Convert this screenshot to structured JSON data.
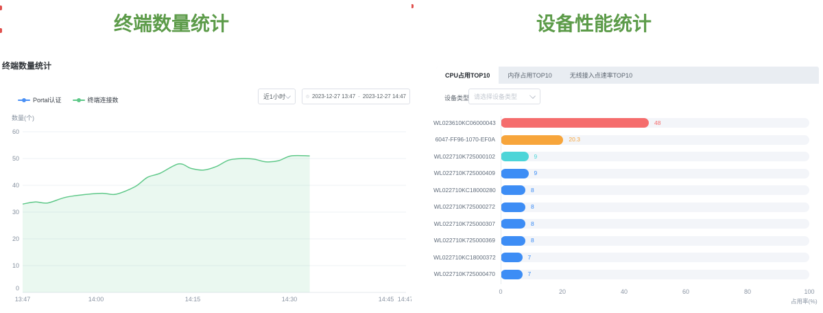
{
  "titles": {
    "left": "终端数量统计",
    "right": "设备性能统计",
    "title_color": "#5c9b49"
  },
  "left_panel": {
    "header": "终端数量统计",
    "time_select_value": "近1小时",
    "date_start": "2023-12-27 13:47",
    "date_separator": "-",
    "date_end": "2023-12-27 14:47",
    "legend": [
      {
        "label": "Portal认证",
        "color": "#4a90f5"
      },
      {
        "label": "终端连接数",
        "color": "#5ec888"
      }
    ]
  },
  "right_panel": {
    "tabs": [
      {
        "label": "CPU占用TOP10",
        "active": true
      },
      {
        "label": "内存占用TOP10",
        "active": false
      },
      {
        "label": "无线接入点速率TOP10",
        "active": false
      }
    ],
    "device_type_label": "设备类型",
    "device_type_placeholder": "请选择设备类型"
  },
  "chart_data": [
    {
      "type": "area",
      "title": "终端数量统计",
      "ylabel": "数量(个)",
      "ylim": [
        0,
        60
      ],
      "y_ticks": [
        0,
        10,
        20,
        30,
        40,
        50,
        60
      ],
      "x_ticks": [
        "13:47",
        "14:00",
        "14:15",
        "14:30",
        "14:45",
        "14:47"
      ],
      "x_axis_span": "13:47 - 14:47",
      "grid": true,
      "legend_position": "top-left",
      "series": [
        {
          "name": "Portal认证",
          "color": "#4a90f5",
          "values": []
        },
        {
          "name": "终端连接数",
          "color": "#5ec888",
          "fill_opacity": 0.13,
          "x": [
            "13:47",
            "13:49",
            "13:51",
            "13:54",
            "13:58",
            "14:00",
            "14:02",
            "14:05",
            "14:07",
            "14:09",
            "14:12",
            "14:14",
            "14:16",
            "14:18",
            "14:20",
            "14:22",
            "14:24",
            "14:26",
            "14:28",
            "14:30",
            "14:33"
          ],
          "minutes": [
            0,
            2,
            4,
            7,
            11,
            13,
            15,
            18,
            20,
            22,
            25,
            27,
            29,
            31,
            33,
            35,
            37,
            39,
            41,
            43,
            46
          ],
          "values": [
            33,
            33.8,
            33.4,
            35.6,
            36.8,
            37,
            36.7,
            39.5,
            43,
            44.5,
            48,
            46.3,
            45.7,
            47,
            49.4,
            50,
            49.8,
            48.8,
            49.2,
            51,
            51
          ]
        }
      ]
    },
    {
      "type": "bar",
      "orientation": "horizontal",
      "title": "CPU占用TOP10",
      "categories": [
        "WL023610KC06000043",
        "6047-FF96-1070-EF0A",
        "WL022710K725000102",
        "WL022710K725000409",
        "WL022710KC18000280",
        "WL022710K725000272",
        "WL022710K725000307",
        "WL022710K725000369",
        "WL022710KC18000372",
        "WL022710K725000470"
      ],
      "values": [
        48,
        20.3,
        9,
        9,
        8,
        8,
        8,
        8,
        7,
        7
      ],
      "value_labels": [
        "48",
        "20.3",
        "9",
        "9",
        "8",
        "8",
        "8",
        "8",
        "7",
        "7"
      ],
      "bar_colors": [
        "#f56c6c",
        "#f7a53b",
        "#4dd5d8",
        "#3d8df5",
        "#3d8df5",
        "#3d8df5",
        "#3d8df5",
        "#3d8df5",
        "#3d8df5",
        "#3d8df5"
      ],
      "track_color": "#f3f5f9",
      "xlim": [
        0,
        100
      ],
      "x_ticks": [
        0,
        20,
        40,
        60,
        80,
        100
      ],
      "xlabel": "占用率(%)"
    }
  ]
}
